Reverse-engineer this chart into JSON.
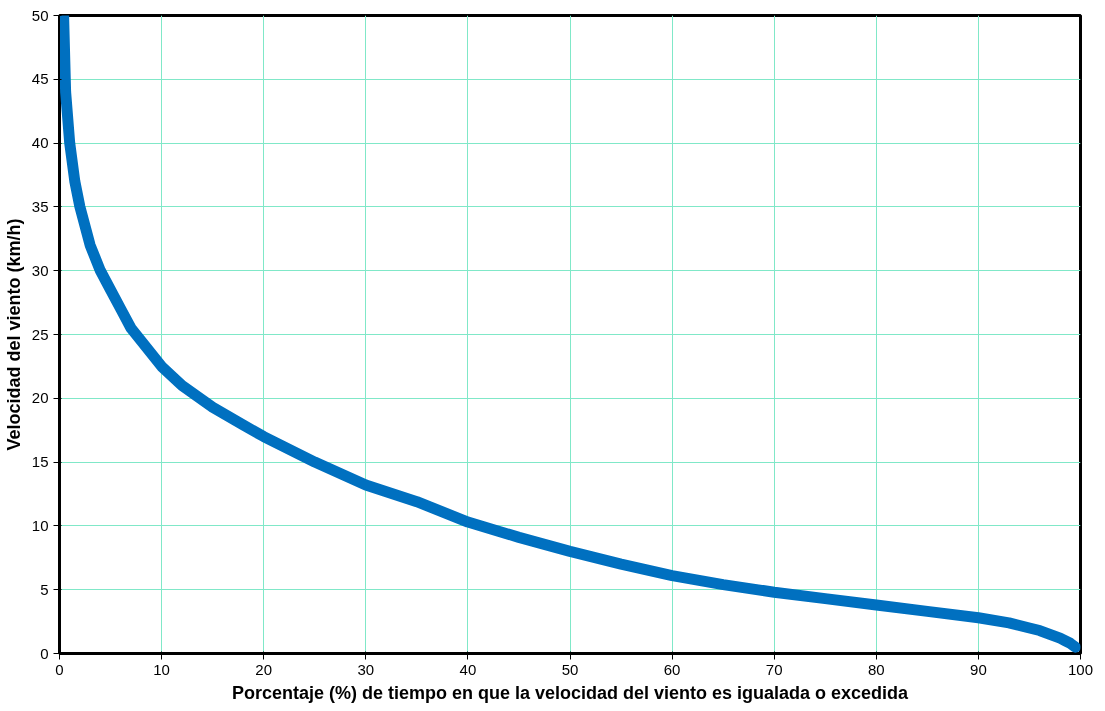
{
  "chart_data": {
    "type": "line",
    "xlabel": "Porcentaje (%) de tiempo en que la velocidad del viento es igualada o excedida",
    "ylabel": "Velocidad del viento (km/h)",
    "x": [
      0.4,
      0.6,
      1,
      1.5,
      2,
      3,
      4,
      5,
      6,
      7,
      8,
      10,
      12,
      15,
      18,
      20,
      25,
      30,
      35,
      40,
      45,
      50,
      55,
      60,
      65,
      70,
      75,
      80,
      85,
      90,
      93,
      95,
      96,
      97,
      98,
      98.5,
      99,
      99.5
    ],
    "series": [
      {
        "color": "#0070c0",
        "values": [
          50,
          44,
          40,
          37,
          35,
          32,
          30,
          28.5,
          27,
          25.5,
          24.5,
          22.5,
          21,
          19.3,
          17.9,
          17,
          15,
          13.2,
          11.9,
          10.3,
          9.1,
          8,
          7,
          6.1,
          5.4,
          4.8,
          4.3,
          3.8,
          3.3,
          2.8,
          2.4,
          2.0,
          1.8,
          1.5,
          1.2,
          1.0,
          0.8,
          0.5
        ]
      }
    ],
    "xlim": [
      0,
      100
    ],
    "ylim": [
      0,
      50
    ],
    "xticks": [
      0,
      10,
      20,
      30,
      40,
      50,
      60,
      70,
      80,
      90,
      100
    ],
    "yticks": [
      0,
      5,
      10,
      15,
      20,
      25,
      30,
      35,
      40,
      45,
      50
    ],
    "grid": true,
    "marker": "none",
    "line_style": "solid"
  }
}
